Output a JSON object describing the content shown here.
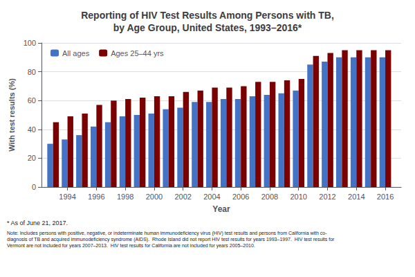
{
  "chart_data": {
    "type": "bar",
    "title": "Reporting of HIV Test Results Among Persons with TB,\nby Age Group, United States, 1993–2016*",
    "xlabel": "Year",
    "ylabel": "With test results (%)",
    "x": [
      1993,
      1994,
      1995,
      1996,
      1997,
      1998,
      1999,
      2000,
      2001,
      2002,
      2003,
      2004,
      2005,
      2006,
      2007,
      2008,
      2009,
      2010,
      2011,
      2012,
      2013,
      2014,
      2015,
      2016
    ],
    "series": [
      {
        "name": "All ages",
        "color": "#4472C4",
        "values": [
          30,
          33,
          36,
          42,
          45,
          49,
          50,
          51,
          54,
          55,
          59,
          59,
          61,
          61,
          63,
          64,
          65,
          67,
          85,
          87,
          90,
          90,
          90,
          90
        ]
      },
      {
        "name": "Ages 25–44 yrs",
        "color": "#7B0000",
        "values": [
          45,
          49,
          51,
          57,
          60,
          61,
          62,
          63,
          63,
          66,
          67,
          69,
          69,
          70,
          73,
          73,
          74,
          75,
          91,
          93,
          95,
          95,
          95,
          95
        ]
      }
    ],
    "xlim": [
      1992.2,
      2017.1
    ],
    "xticks": [
      1994,
      1996,
      1998,
      2000,
      2002,
      2004,
      2006,
      2008,
      2010,
      2012,
      2014,
      2016
    ],
    "ylim": [
      0,
      100
    ],
    "yticks": [
      0,
      20,
      40,
      60,
      80,
      100
    ],
    "grid": true,
    "legend": "upper left",
    "annotations": [
      "* As of June 21, 2017.",
      "Note: Includes persons with positive, negative, or indeterminate human immunodeficiency virus (HIV) test results and persons from California with co-\ndiagnosis of TB and acquired immunodeficiency syndrome (AIDS).  Rhode Island did not report HIV test results for years 1993–1997.  HIV test results for\nVermont are not included for years 2007–2013.  HIV test results for California are not included for years 2005–2010."
    ]
  }
}
